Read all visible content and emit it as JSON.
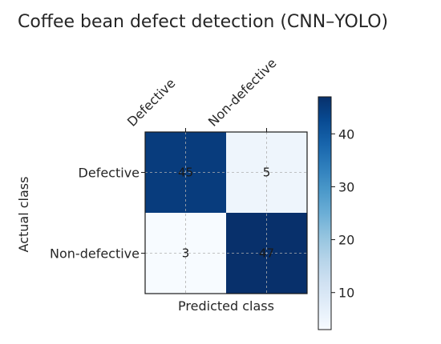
{
  "chart_data": {
    "type": "heatmap",
    "title": "Coffee bean defect detection (CNN–YOLO)",
    "xlabel": "Predicted class",
    "ylabel": "Actual class",
    "row_labels": [
      "Defective",
      "Non-defective"
    ],
    "col_labels": [
      "Defective",
      "Non-defective"
    ],
    "values": [
      [
        45,
        5
      ],
      [
        3,
        47
      ]
    ],
    "colormap": "Blues",
    "colorbar": {
      "range": [
        3,
        47
      ],
      "ticks": [
        10,
        20,
        30,
        40
      ]
    },
    "grid": true
  }
}
